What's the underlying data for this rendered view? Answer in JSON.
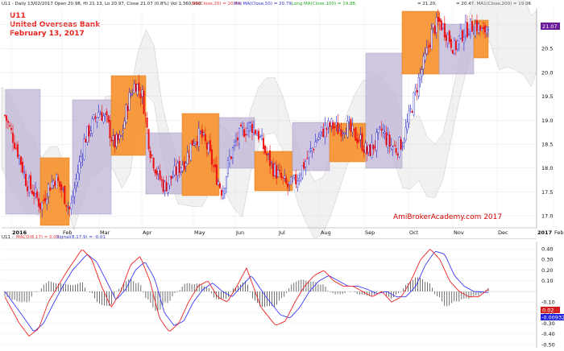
{
  "header": {
    "prefix": "U11 - Daily 13/02/2017 Open 20.98, Hi 21.13, Lo 20.97, Close 21.07 (0.8%) Vol 1,360,900",
    "ma20": "MA(Close,20) = 20.84,",
    "mid": "Mid MA(Close,50) = 20.79,",
    "long": "Long MA(Close,100) = 19.88,",
    "faded": "...",
    "tail": "= 21.20,",
    "ma200": "= 20.47, MA1(Close,200) = 19.06"
  },
  "title": {
    "symbol": "U11",
    "name": "United Overseas Bank",
    "date": "February 13, 2017"
  },
  "watermark": "AmiBrokerAcademy.com  2017",
  "macd_header": {
    "prefix": "U11 -",
    "macd": "MACD(8,17) = 0.02,",
    "signal": "Signal(8,17,9) = -0.01"
  },
  "badges": {
    "price": "21.07",
    "macd": "0.02",
    "signal": "-0.00932"
  },
  "colors": {
    "up": "#2222cc",
    "down": "#ee1111",
    "highlight_box": "#f5902a",
    "range_box": "#bfb3d6",
    "macd_line": "#ee2222",
    "signal_line": "#3b3bff",
    "histogram": "#333333",
    "title": "#e8231f"
  },
  "chart_data": [
    {
      "type": "candlestick",
      "title": "U11 United Overseas Bank",
      "xlabel": "",
      "ylabel": "",
      "x_tick_labels": [
        "2016",
        "Feb",
        "Mar",
        "Apr",
        "May",
        "Jun",
        "Jul",
        "Aug",
        "Sep",
        "Oct",
        "Nov",
        "Dec",
        "2017",
        "Feb"
      ],
      "y_ticks": [
        17.0,
        17.5,
        18.0,
        18.5,
        19.0,
        19.5,
        20.0,
        20.5,
        21.0
      ],
      "ylim": [
        16.75,
        21.35
      ],
      "close_path": [
        {
          "x": 0,
          "y": 19.1
        },
        {
          "x": 1.5,
          "y": 18.7
        },
        {
          "x": 3,
          "y": 18.25
        },
        {
          "x": 4.5,
          "y": 17.7
        },
        {
          "x": 6,
          "y": 17.5
        },
        {
          "x": 7.5,
          "y": 17.2
        },
        {
          "x": 9,
          "y": 17.6
        },
        {
          "x": 10.5,
          "y": 17.8
        },
        {
          "x": 12,
          "y": 17.5
        },
        {
          "x": 13.5,
          "y": 17.1
        },
        {
          "x": 15,
          "y": 17.9
        },
        {
          "x": 16.5,
          "y": 18.6
        },
        {
          "x": 18,
          "y": 18.9
        },
        {
          "x": 19.5,
          "y": 19.2
        },
        {
          "x": 21,
          "y": 19.0
        },
        {
          "x": 22.5,
          "y": 18.5
        },
        {
          "x": 24,
          "y": 18.6
        },
        {
          "x": 25.5,
          "y": 19.4
        },
        {
          "x": 27,
          "y": 19.8
        },
        {
          "x": 28.5,
          "y": 19.5
        },
        {
          "x": 30,
          "y": 18.4
        },
        {
          "x": 31.5,
          "y": 17.9
        },
        {
          "x": 33,
          "y": 17.6
        },
        {
          "x": 34.5,
          "y": 17.8
        },
        {
          "x": 36,
          "y": 18.0
        },
        {
          "x": 37.5,
          "y": 18.2
        },
        {
          "x": 39,
          "y": 18.6
        },
        {
          "x": 40.5,
          "y": 18.7
        },
        {
          "x": 42,
          "y": 18.4
        },
        {
          "x": 43.5,
          "y": 17.9
        },
        {
          "x": 45,
          "y": 17.5
        },
        {
          "x": 46.5,
          "y": 18.2
        },
        {
          "x": 48,
          "y": 18.6
        },
        {
          "x": 49.5,
          "y": 18.8
        },
        {
          "x": 51,
          "y": 18.9
        },
        {
          "x": 52.5,
          "y": 18.7
        },
        {
          "x": 54,
          "y": 18.3
        },
        {
          "x": 55.5,
          "y": 18.0
        },
        {
          "x": 57,
          "y": 17.8
        },
        {
          "x": 58.5,
          "y": 17.6
        },
        {
          "x": 60,
          "y": 17.7
        },
        {
          "x": 61.5,
          "y": 18.0
        },
        {
          "x": 63,
          "y": 18.3
        },
        {
          "x": 64.5,
          "y": 18.6
        },
        {
          "x": 66,
          "y": 18.8
        },
        {
          "x": 67.5,
          "y": 18.9
        },
        {
          "x": 69,
          "y": 18.8
        },
        {
          "x": 70.5,
          "y": 18.9
        },
        {
          "x": 72,
          "y": 18.7
        },
        {
          "x": 73.5,
          "y": 18.6
        },
        {
          "x": 75,
          "y": 18.3
        },
        {
          "x": 76.5,
          "y": 18.5
        },
        {
          "x": 78,
          "y": 18.8
        },
        {
          "x": 79.5,
          "y": 18.5
        },
        {
          "x": 81,
          "y": 18.4
        },
        {
          "x": 82.5,
          "y": 18.6
        },
        {
          "x": 84,
          "y": 19.2
        },
        {
          "x": 85.5,
          "y": 19.8
        },
        {
          "x": 87,
          "y": 20.3
        },
        {
          "x": 88.5,
          "y": 20.9
        },
        {
          "x": 90,
          "y": 21.05
        },
        {
          "x": 91.5,
          "y": 20.8
        },
        {
          "x": 93,
          "y": 20.5
        },
        {
          "x": 94.5,
          "y": 20.8
        },
        {
          "x": 96,
          "y": 20.95
        },
        {
          "x": 97.5,
          "y": 21.0
        },
        {
          "x": 99,
          "y": 20.8
        },
        {
          "x": 100,
          "y": 21.07
        }
      ]
    },
    {
      "type": "line",
      "title": "MACD(8,17), Signal(8,17,9)",
      "x_tick_labels": [],
      "y_ticks": [
        -0.5,
        -0.4,
        -0.3,
        -0.2,
        -0.1,
        0.1,
        0.2,
        0.3,
        0.4
      ],
      "ylim": [
        -0.53,
        0.47
      ],
      "series": [
        {
          "name": "MACD(8,17)",
          "x": [
            0,
            3,
            5,
            7,
            9,
            11,
            13,
            16,
            18,
            20,
            22,
            24,
            26,
            28,
            30,
            32,
            34,
            36,
            38,
            40,
            42,
            44,
            46,
            48,
            50,
            53,
            56,
            58,
            60,
            62,
            64,
            66,
            68,
            70,
            72,
            74,
            76,
            78,
            80,
            82,
            84,
            86,
            88,
            90,
            92,
            94,
            96,
            98,
            100
          ],
          "values": [
            -0.05,
            -0.3,
            -0.42,
            -0.35,
            -0.1,
            0.05,
            0.2,
            0.4,
            0.3,
            0.05,
            -0.15,
            0.0,
            0.25,
            0.33,
            0.1,
            -0.25,
            -0.38,
            -0.3,
            -0.1,
            0.05,
            0.1,
            -0.05,
            -0.1,
            0.05,
            0.22,
            -0.15,
            -0.32,
            -0.28,
            -0.1,
            0.05,
            0.15,
            0.2,
            0.1,
            0.05,
            0.05,
            0.0,
            -0.05,
            0.0,
            -0.1,
            -0.05,
            0.1,
            0.3,
            0.4,
            0.3,
            0.1,
            0.0,
            -0.05,
            -0.05,
            0.02
          ]
        },
        {
          "name": "Signal(8,17,9)",
          "x": [
            0,
            4,
            6,
            8,
            10,
            12,
            14,
            17,
            19,
            21,
            23,
            25,
            27,
            29,
            31,
            33,
            35,
            37,
            39,
            41,
            43,
            45,
            47,
            49,
            51,
            54,
            57,
            59,
            61,
            63,
            65,
            67,
            69,
            71,
            73,
            75,
            77,
            79,
            81,
            83,
            85,
            87,
            89,
            91,
            93,
            95,
            97,
            100
          ],
          "values": [
            0.0,
            -0.25,
            -0.38,
            -0.3,
            -0.12,
            0.05,
            0.2,
            0.35,
            0.28,
            0.1,
            -0.08,
            0.02,
            0.2,
            0.28,
            0.12,
            -0.2,
            -0.32,
            -0.28,
            -0.1,
            0.02,
            0.08,
            0.0,
            -0.05,
            0.05,
            0.15,
            -0.05,
            -0.22,
            -0.25,
            -0.15,
            0.0,
            0.1,
            0.15,
            0.1,
            0.05,
            0.05,
            0.02,
            -0.02,
            0.0,
            -0.05,
            -0.05,
            0.05,
            0.25,
            0.38,
            0.35,
            0.15,
            0.05,
            0.0,
            -0.01
          ]
        }
      ]
    }
  ]
}
